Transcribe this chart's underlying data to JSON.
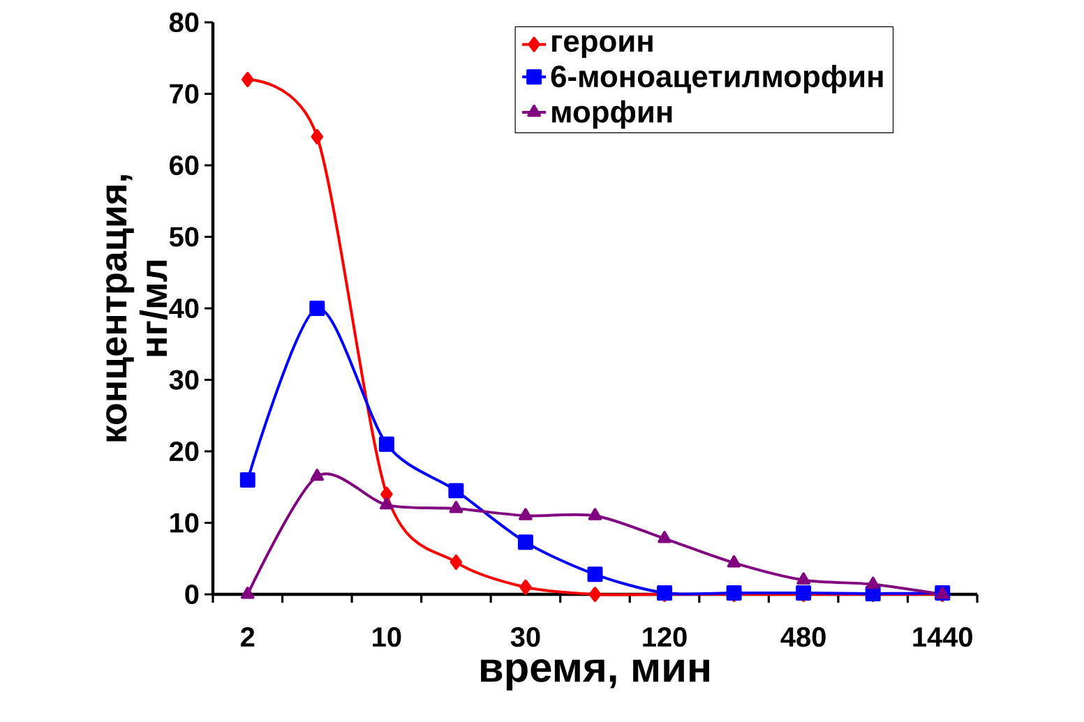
{
  "chart_data": {
    "type": "line",
    "xlabel": "время, мин",
    "ylabel": "концентрация, нг/мл",
    "categories": [
      "2",
      null,
      "10",
      null,
      "30",
      null,
      "120",
      null,
      "480",
      null,
      "1440"
    ],
    "ylim": [
      0,
      80
    ],
    "yticks": [
      0,
      10,
      20,
      30,
      40,
      50,
      60,
      70,
      80
    ],
    "grid": false,
    "legend": "top right",
    "line_style": "solid",
    "series": [
      {
        "name": "героин",
        "color": "#ff0000",
        "marker": "diamond",
        "values": [
          72,
          64,
          14,
          4.5,
          1,
          0,
          0,
          0,
          0,
          0,
          0
        ]
      },
      {
        "name": "6-моноацетилморфин",
        "color": "#0000ff",
        "marker": "square",
        "values": [
          16,
          40,
          21,
          14.5,
          7.3,
          2.8,
          0.2,
          0.2,
          0.2,
          0.1,
          0.2
        ]
      },
      {
        "name": "морфин",
        "color": "#800080",
        "marker": "triangle",
        "values": [
          0,
          16.5,
          12.5,
          12,
          11,
          11,
          7.8,
          4.4,
          2,
          1.4,
          0
        ]
      }
    ]
  }
}
